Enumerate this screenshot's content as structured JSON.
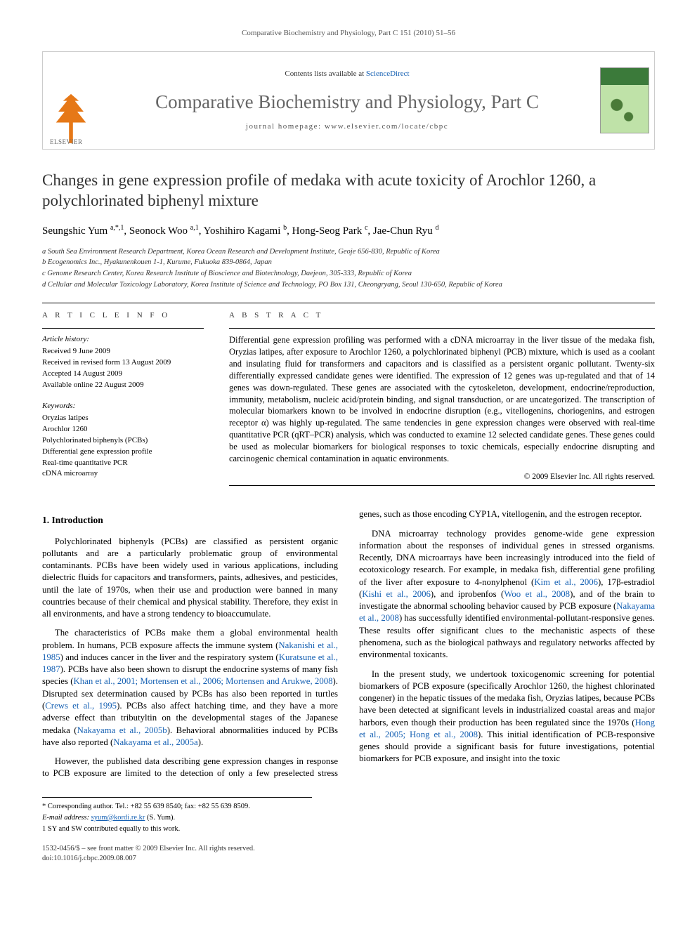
{
  "running_head": "Comparative Biochemistry and Physiology, Part C 151 (2010) 51–56",
  "masthead": {
    "contents_prefix": "Contents lists available at ",
    "contents_link": "ScienceDirect",
    "journal": "Comparative Biochemistry and Physiology, Part C",
    "homepage_prefix": "journal homepage: ",
    "homepage": "www.elsevier.com/locate/cbpc",
    "publisher": "ELSEVIER"
  },
  "title": "Changes in gene expression profile of medaka with acute toxicity of Arochlor 1260, a polychlorinated biphenyl mixture",
  "authors_html": "Seungshic Yum <sup>a,*,1</sup>, Seonock Woo <sup>a,1</sup>, Yoshihiro Kagami <sup>b</sup>, Hong-Seog Park <sup>c</sup>, Jae-Chun Ryu <sup>d</sup>",
  "affiliations": [
    "a  South Sea Environment Research Department, Korea Ocean Research and Development Institute, Geoje 656-830, Republic of Korea",
    "b  Ecogenomics Inc., Hyakunenkouen 1-1, Kurume, Fukuoka 839-0864, Japan",
    "c  Genome Research Center, Korea Research Institute of Bioscience and Biotechnology, Daejeon, 305-333, Republic of Korea",
    "d  Cellular and Molecular Toxicology Laboratory, Korea Institute of Science and Technology, PO Box 131, Cheongryang, Seoul 130-650, Republic of Korea"
  ],
  "article_info": {
    "label": "a r t i c l e   i n f o",
    "history_head": "Article history:",
    "history": [
      "Received 9 June 2009",
      "Received in revised form 13 August 2009",
      "Accepted 14 August 2009",
      "Available online 22 August 2009"
    ],
    "keywords_head": "Keywords:",
    "keywords": [
      "Oryzias latipes",
      "Arochlor 1260",
      "Polychlorinated biphenyls (PCBs)",
      "Differential gene expression profile",
      "Real-time quantitative PCR",
      "cDNA microarray"
    ]
  },
  "abstract": {
    "label": "a b s t r a c t",
    "text": "Differential gene expression profiling was performed with a cDNA microarray in the liver tissue of the medaka fish, Oryzias latipes, after exposure to Arochlor 1260, a polychlorinated biphenyl (PCB) mixture, which is used as a coolant and insulating fluid for transformers and capacitors and is classified as a persistent organic pollutant. Twenty-six differentially expressed candidate genes were identified. The expression of 12 genes was up-regulated and that of 14 genes was down-regulated. These genes are associated with the cytoskeleton, development, endocrine/reproduction, immunity, metabolism, nucleic acid/protein binding, and signal transduction, or are uncategorized. The transcription of molecular biomarkers known to be involved in endocrine disruption (e.g., vitellogenins, choriogenins, and estrogen receptor α) was highly up-regulated. The same tendencies in gene expression changes were observed with real-time quantitative PCR (qRT–PCR) analysis, which was conducted to examine 12 selected candidate genes. These genes could be used as molecular biomarkers for biological responses to toxic chemicals, especially endocrine disrupting and carcinogenic chemical contamination in aquatic environments.",
    "copyright": "© 2009 Elsevier Inc. All rights reserved."
  },
  "section1": {
    "heading": "1. Introduction",
    "paras": [
      "Polychlorinated biphenyls (PCBs) are classified as persistent organic pollutants and are a particularly problematic group of environmental contaminants. PCBs have been widely used in various applications, including dielectric fluids for capacitors and transformers, paints, adhesives, and pesticides, until the late of 1970s, when their use and production were banned in many countries because of their chemical and physical stability. Therefore, they exist in all environments, and have a strong tendency to bioaccumulate.",
      "The characteristics of PCBs make them a global environmental health problem. In humans, PCB exposure affects the immune system (<span class=\"cite\">Nakanishi et al., 1985</span>) and induces cancer in the liver and the respiratory system (<span class=\"cite\">Kuratsune et al., 1987</span>). PCBs have also been shown to disrupt the endocrine systems of many fish species (<span class=\"cite\">Khan et al., 2001; Mortensen et al., 2006; Mortensen and Arukwe, 2008</span>). Disrupted sex determination caused by PCBs has also been reported in turtles (<span class=\"cite\">Crews et al., 1995</span>). PCBs also affect hatching time, and they have a more adverse effect than tributyltin on the developmental stages of the Japanese medaka (<span class=\"cite\">Nakayama et al., 2005b</span>). Behavioral abnormalities induced by PCBs have also reported (<span class=\"cite\">Nakayama et al., 2005a</span>).",
      "However, the published data describing gene expression changes in response to PCB exposure are limited to the detection of only a few preselected stress genes, such as those encoding CYP1A, vitellogenin, and the estrogen receptor.",
      "DNA microarray technology provides genome-wide gene expression information about the responses of individual genes in stressed organisms. Recently, DNA microarrays have been increasingly introduced into the field of ecotoxicology research. For example, in medaka fish, differential gene profiling of the liver after exposure to 4-nonylphenol (<span class=\"cite\">Kim et al., 2006</span>), 17β-estradiol (<span class=\"cite\">Kishi et al., 2006</span>), and iprobenfos (<span class=\"cite\">Woo et al., 2008</span>), and of the brain to investigate the abnormal schooling behavior caused by PCB exposure (<span class=\"cite\">Nakayama et al., 2008</span>) has successfully identified environmental-pollutant-responsive genes. These results offer significant clues to the mechanistic aspects of these phenomena, such as the biological pathways and regulatory networks affected by environmental toxicants.",
      "In the present study, we undertook toxicogenomic screening for potential biomarkers of PCB exposure (specifically Arochlor 1260, the highest chlorinated congener) in the hepatic tissues of the medaka fish, Oryzias latipes, because PCBs have been detected at significant levels in industrialized coastal areas and major harbors, even though their production has been regulated since the 1970s (<span class=\"cite\">Hong et al., 2005; Hong et al., 2008</span>). This initial identification of PCB-responsive genes should provide a significant basis for future investigations, potential biomarkers for PCB exposure, and insight into the toxic"
    ]
  },
  "footnotes": {
    "corr": "* Corresponding author. Tel.: +82 55 639 8540; fax: +82 55 639 8509.",
    "email_label": "E-mail address: ",
    "email": "syum@kordi.re.kr",
    "email_tail": " (S. Yum).",
    "note1": "1  SY and SW contributed equally to this work."
  },
  "footer": {
    "line1": "1532-0456/$ – see front matter © 2009 Elsevier Inc. All rights reserved.",
    "doi": "doi:10.1016/j.cbpc.2009.08.007"
  },
  "colors": {
    "link": "#1560b3",
    "publisher_orange": "#e67817",
    "journal_grey": "#666666"
  }
}
